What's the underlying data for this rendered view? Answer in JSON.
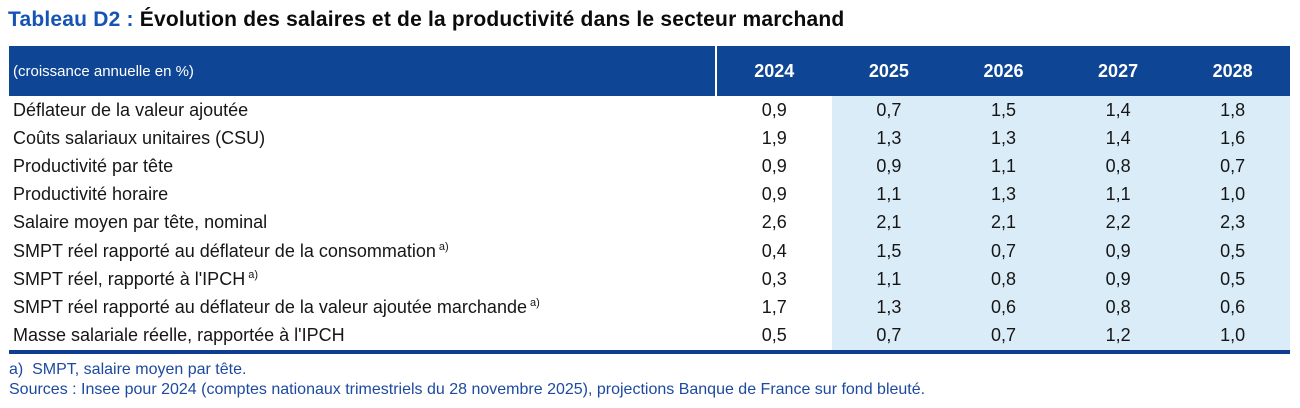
{
  "title": {
    "prefix": "Tableau D2 : ",
    "rest": "Évolution des salaires et de la productivité dans le secteur marchand"
  },
  "table": {
    "header_label": "(croissance annuelle en %)",
    "years": [
      "2024",
      "2025",
      "2026",
      "2027",
      "2028"
    ],
    "rows": [
      {
        "label": "Déflateur de la valeur ajoutée",
        "note": "",
        "values": [
          "0,9",
          "0,7",
          "1,5",
          "1,4",
          "1,8"
        ]
      },
      {
        "label": "Coûts salariaux unitaires (CSU)",
        "note": "",
        "values": [
          "1,9",
          "1,3",
          "1,3",
          "1,4",
          "1,6"
        ]
      },
      {
        "label": "Productivité par tête",
        "note": "",
        "values": [
          "0,9",
          "0,9",
          "1,1",
          "0,8",
          "0,7"
        ]
      },
      {
        "label": "Productivité horaire",
        "note": "",
        "values": [
          "0,9",
          "1,1",
          "1,3",
          "1,1",
          "1,0"
        ]
      },
      {
        "label": "Salaire moyen par tête, nominal",
        "note": "",
        "values": [
          "2,6",
          "2,1",
          "2,1",
          "2,2",
          "2,3"
        ]
      },
      {
        "label": "SMPT réel rapporté au déflateur de la consommation",
        "note": "a)",
        "values": [
          "0,4",
          "1,5",
          "0,7",
          "0,9",
          "0,5"
        ]
      },
      {
        "label": "SMPT réel, rapporté à l'IPCH",
        "note": "a)",
        "values": [
          "0,3",
          "1,1",
          "0,8",
          "0,9",
          "0,5"
        ]
      },
      {
        "label": "SMPT réel rapporté au déflateur de la valeur ajoutée marchande",
        "note": "a)",
        "values": [
          "1,7",
          "1,3",
          "0,6",
          "0,8",
          "0,6"
        ]
      },
      {
        "label": "Masse salariale réelle, rapportée à l'IPCH",
        "note": "",
        "values": [
          "0,5",
          "0,7",
          "0,7",
          "1,2",
          "1,0"
        ]
      }
    ]
  },
  "footnotes": [
    "a)  SMPT, salaire moyen par tête.",
    "Sources : Insee pour 2024 (comptes nationaux trimestriels du 28 novembre 2025), projections Banque de France sur fond bleuté."
  ],
  "colors": {
    "header_background": "#0e4595",
    "projection_background": "#daecf8",
    "title_accent": "#1553b4",
    "footnote_text": "#1d4aa0",
    "bottom_border": "#0f3d94"
  }
}
